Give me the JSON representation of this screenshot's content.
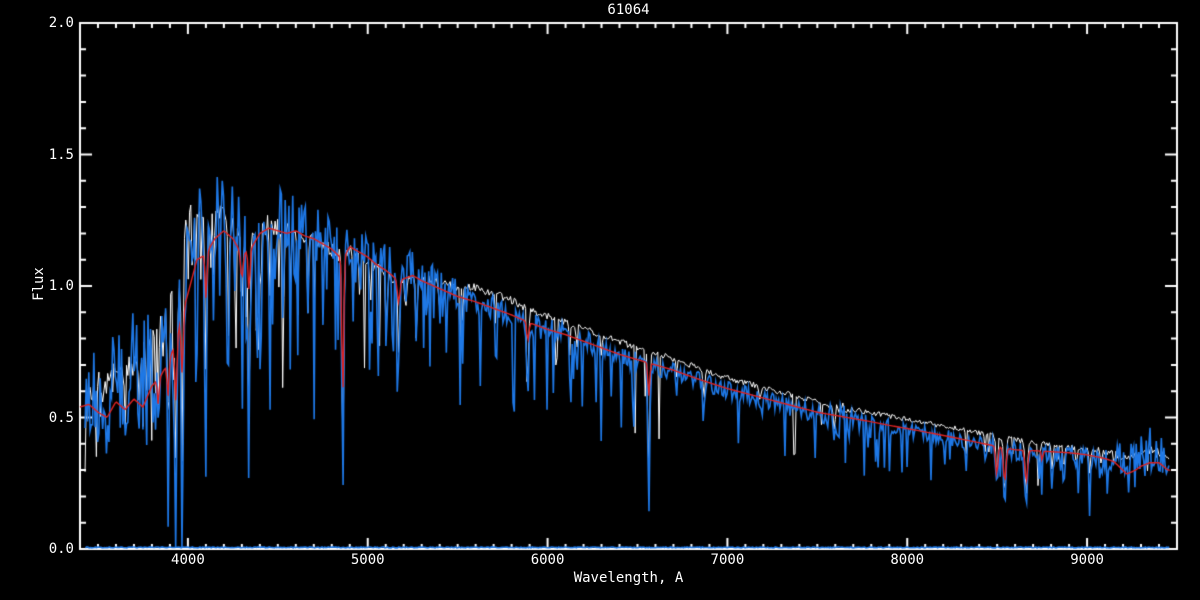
{
  "title": "61064",
  "axes": {
    "x_label": "Wavelength, A",
    "y_label": "Flux",
    "x_range": [
      3400,
      9500
    ],
    "y_range": [
      0.0,
      2.0
    ],
    "x_major_ticks": [
      {
        "value": 4000,
        "label": "4000"
      },
      {
        "value": 5000,
        "label": "5000"
      },
      {
        "value": 6000,
        "label": "6000"
      },
      {
        "value": 7000,
        "label": "7000"
      },
      {
        "value": 8000,
        "label": "8000"
      },
      {
        "value": 9000,
        "label": "9000"
      }
    ],
    "x_minor_step": 100,
    "y_major_ticks": [
      {
        "value": 0.0,
        "label": "0.0"
      },
      {
        "value": 0.5,
        "label": "0.5"
      },
      {
        "value": 1.0,
        "label": "1.0"
      },
      {
        "value": 1.5,
        "label": "1.5"
      },
      {
        "value": 2.0,
        "label": "2.0"
      }
    ],
    "y_minor_step": 0.1
  },
  "colors": {
    "background": "#000000",
    "axis": "#ffffff",
    "observed_white": "#ffffff",
    "observed_blue": "#1e78e6",
    "model_red": "#dd2222"
  },
  "chart_data": {
    "type": "line",
    "title": "61064",
    "xlabel": "Wavelength, A",
    "ylabel": "Flux",
    "xlim": [
      3400,
      9500
    ],
    "ylim": [
      0.0,
      2.0
    ],
    "grid": false,
    "legend": null,
    "continuum_anchors": [
      [
        3400,
        0.5
      ],
      [
        3450,
        0.62
      ],
      [
        3500,
        0.66
      ],
      [
        3550,
        0.66
      ],
      [
        3600,
        0.72
      ],
      [
        3650,
        0.74
      ],
      [
        3700,
        0.76
      ],
      [
        3750,
        0.8
      ],
      [
        3800,
        0.88
      ],
      [
        3850,
        0.95
      ],
      [
        3900,
        0.98
      ],
      [
        3950,
        1.05
      ],
      [
        3990,
        1.3
      ],
      [
        4030,
        1.38
      ],
      [
        4080,
        1.32
      ],
      [
        4120,
        1.3
      ],
      [
        4160,
        1.35
      ],
      [
        4200,
        1.36
      ],
      [
        4250,
        1.32
      ],
      [
        4300,
        1.28
      ],
      [
        4350,
        1.25
      ],
      [
        4400,
        1.3
      ],
      [
        4450,
        1.31
      ],
      [
        4500,
        1.3
      ],
      [
        4550,
        1.28
      ],
      [
        4600,
        1.27
      ],
      [
        4650,
        1.25
      ],
      [
        4700,
        1.24
      ],
      [
        4750,
        1.22
      ],
      [
        4800,
        1.21
      ],
      [
        4860,
        1.18
      ],
      [
        4900,
        1.21
      ],
      [
        4950,
        1.19
      ],
      [
        5000,
        1.17
      ],
      [
        5050,
        1.14
      ],
      [
        5100,
        1.12
      ],
      [
        5170,
        1.08
      ],
      [
        5250,
        1.09
      ],
      [
        5300,
        1.07
      ],
      [
        5400,
        1.03
      ],
      [
        5500,
        0.985
      ],
      [
        5600,
        0.96
      ],
      [
        5700,
        0.935
      ],
      [
        5800,
        0.91
      ],
      [
        5900,
        0.875
      ],
      [
        6000,
        0.85
      ],
      [
        6100,
        0.83
      ],
      [
        6200,
        0.805
      ],
      [
        6300,
        0.78
      ],
      [
        6400,
        0.755
      ],
      [
        6500,
        0.73
      ],
      [
        6600,
        0.71
      ],
      [
        6700,
        0.69
      ],
      [
        6800,
        0.665
      ],
      [
        6900,
        0.64
      ],
      [
        7000,
        0.617
      ],
      [
        7100,
        0.6
      ],
      [
        7200,
        0.582
      ],
      [
        7300,
        0.563
      ],
      [
        7400,
        0.545
      ],
      [
        7500,
        0.528
      ],
      [
        7600,
        0.513
      ],
      [
        7700,
        0.5
      ],
      [
        7800,
        0.487
      ],
      [
        7900,
        0.474
      ],
      [
        8000,
        0.462
      ],
      [
        8100,
        0.449
      ],
      [
        8200,
        0.437
      ],
      [
        8300,
        0.424
      ],
      [
        8400,
        0.412
      ],
      [
        8500,
        0.398
      ],
      [
        8600,
        0.385
      ],
      [
        8700,
        0.378
      ],
      [
        8800,
        0.372
      ],
      [
        8900,
        0.368
      ],
      [
        9000,
        0.364
      ],
      [
        9100,
        0.362
      ],
      [
        9200,
        0.365
      ],
      [
        9300,
        0.39
      ],
      [
        9350,
        0.41
      ],
      [
        9400,
        0.39
      ],
      [
        9450,
        0.36
      ]
    ],
    "model_anchors": [
      [
        3400,
        0.54
      ],
      [
        3450,
        0.55
      ],
      [
        3500,
        0.52
      ],
      [
        3550,
        0.5
      ],
      [
        3600,
        0.56
      ],
      [
        3650,
        0.53
      ],
      [
        3700,
        0.57
      ],
      [
        3750,
        0.54
      ],
      [
        3800,
        0.62
      ],
      [
        3850,
        0.66
      ],
      [
        3900,
        0.72
      ],
      [
        3950,
        0.85
      ],
      [
        4000,
        0.97
      ],
      [
        4050,
        1.1
      ],
      [
        4100,
        1.12
      ],
      [
        4150,
        1.18
      ],
      [
        4200,
        1.21
      ],
      [
        4250,
        1.18
      ],
      [
        4300,
        1.12
      ],
      [
        4350,
        1.14
      ],
      [
        4400,
        1.2
      ],
      [
        4450,
        1.22
      ],
      [
        4500,
        1.21
      ],
      [
        4550,
        1.2
      ],
      [
        4600,
        1.21
      ],
      [
        4650,
        1.19
      ],
      [
        4700,
        1.18
      ],
      [
        4750,
        1.16
      ],
      [
        4800,
        1.14
      ],
      [
        4860,
        1.1
      ],
      [
        4900,
        1.15
      ],
      [
        4950,
        1.13
      ],
      [
        5000,
        1.11
      ],
      [
        5050,
        1.08
      ],
      [
        5100,
        1.06
      ],
      [
        5170,
        1.02
      ],
      [
        5250,
        1.04
      ],
      [
        5300,
        1.02
      ],
      [
        5400,
        0.99
      ],
      [
        5500,
        0.96
      ],
      [
        5600,
        0.94
      ],
      [
        5700,
        0.915
      ],
      [
        5800,
        0.89
      ],
      [
        5900,
        0.86
      ],
      [
        6000,
        0.835
      ],
      [
        6100,
        0.815
      ],
      [
        6200,
        0.79
      ],
      [
        6300,
        0.765
      ],
      [
        6400,
        0.74
      ],
      [
        6500,
        0.72
      ],
      [
        6600,
        0.7
      ],
      [
        6700,
        0.68
      ],
      [
        6800,
        0.655
      ],
      [
        6900,
        0.632
      ],
      [
        7000,
        0.61
      ],
      [
        7100,
        0.592
      ],
      [
        7200,
        0.574
      ],
      [
        7300,
        0.556
      ],
      [
        7400,
        0.538
      ],
      [
        7500,
        0.52
      ],
      [
        7600,
        0.508
      ],
      [
        7700,
        0.496
      ],
      [
        7800,
        0.484
      ],
      [
        7900,
        0.47
      ],
      [
        8000,
        0.458
      ],
      [
        8100,
        0.445
      ],
      [
        8200,
        0.432
      ],
      [
        8300,
        0.418
      ],
      [
        8400,
        0.404
      ],
      [
        8500,
        0.39
      ],
      [
        8600,
        0.377
      ],
      [
        8700,
        0.374
      ],
      [
        8800,
        0.37
      ],
      [
        8900,
        0.366
      ],
      [
        9000,
        0.358
      ],
      [
        9100,
        0.344
      ],
      [
        9150,
        0.332
      ],
      [
        9220,
        0.285
      ],
      [
        9270,
        0.3
      ],
      [
        9300,
        0.315
      ],
      [
        9350,
        0.328
      ],
      [
        9400,
        0.328
      ],
      [
        9450,
        0.3
      ]
    ],
    "absorption_lines_observed": [
      [
        3727,
        4,
        0.3
      ],
      [
        3750,
        3,
        0.25
      ],
      [
        3771,
        3,
        0.3
      ],
      [
        3798,
        4,
        0.35
      ],
      [
        3820,
        3,
        0.3
      ],
      [
        3835,
        4,
        0.45
      ],
      [
        3860,
        3,
        0.35
      ],
      [
        3889,
        4,
        0.5
      ],
      [
        3920,
        3,
        0.4
      ],
      [
        3933,
        5,
        0.8
      ],
      [
        3968,
        5,
        0.8
      ],
      [
        4026,
        3,
        0.28
      ],
      [
        4045,
        2,
        0.22
      ],
      [
        4101,
        5,
        0.55
      ],
      [
        4144,
        3,
        0.25
      ],
      [
        4226,
        4,
        0.4
      ],
      [
        4260,
        3,
        0.25
      ],
      [
        4300,
        5,
        0.3
      ],
      [
        4325,
        3,
        0.3
      ],
      [
        4340,
        5,
        0.7
      ],
      [
        4383,
        4,
        0.5
      ],
      [
        4404,
        3,
        0.35
      ],
      [
        4455,
        3,
        0.3
      ],
      [
        4531,
        4,
        0.32
      ],
      [
        4571,
        3,
        0.25
      ],
      [
        4668,
        3,
        0.28
      ],
      [
        4703,
        3,
        0.22
      ],
      [
        4861,
        5,
        0.85
      ],
      [
        4920,
        3,
        0.25
      ],
      [
        4957,
        3,
        0.22
      ],
      [
        5015,
        3,
        0.22
      ],
      [
        5110,
        3,
        0.2
      ],
      [
        5172,
        5,
        0.32
      ],
      [
        5210,
        3,
        0.2
      ],
      [
        5270,
        4,
        0.28
      ],
      [
        5328,
        3,
        0.22
      ],
      [
        5400,
        3,
        0.18
      ],
      [
        5528,
        3,
        0.15
      ],
      [
        5710,
        3,
        0.15
      ],
      [
        5890,
        5,
        0.3
      ],
      [
        6122,
        3,
        0.18
      ],
      [
        6162,
        3,
        0.16
      ],
      [
        6300,
        3,
        0.12
      ],
      [
        6563,
        5,
        0.8
      ],
      [
        6717,
        3,
        0.12
      ],
      [
        6870,
        5,
        0.18
      ],
      [
        7180,
        5,
        0.1
      ],
      [
        7594,
        6,
        0.15
      ],
      [
        8327,
        3,
        0.22
      ],
      [
        8434,
        3,
        0.2
      ],
      [
        8498,
        5,
        0.4
      ],
      [
        8542,
        6,
        0.62
      ],
      [
        8662,
        6,
        0.6
      ],
      [
        8736,
        3,
        0.25
      ],
      [
        8806,
        4,
        0.3
      ],
      [
        8870,
        4,
        0.28
      ],
      [
        8940,
        3,
        0.25
      ],
      [
        9015,
        4,
        0.3
      ],
      [
        9080,
        3,
        0.25
      ],
      [
        9150,
        3,
        0.22
      ]
    ],
    "absorption_lines_model": [
      [
        3835,
        5,
        0.15
      ],
      [
        3889,
        5,
        0.18
      ],
      [
        3933,
        6,
        0.3
      ],
      [
        3968,
        6,
        0.25
      ],
      [
        4101,
        5,
        0.15
      ],
      [
        4300,
        7,
        0.08
      ],
      [
        4340,
        5,
        0.14
      ],
      [
        4861,
        5,
        0.48
      ],
      [
        5172,
        7,
        0.08
      ],
      [
        5890,
        6,
        0.08
      ],
      [
        6563,
        5,
        0.18
      ],
      [
        8498,
        6,
        0.28
      ],
      [
        8542,
        7,
        0.33
      ],
      [
        8662,
        7,
        0.32
      ],
      [
        8750,
        4,
        0.1
      ]
    ],
    "series": [
      {
        "name": "observed-spectrum-white",
        "color": "#ffffff",
        "source": "continuum",
        "width": 1,
        "depth_scale": 0.85,
        "noise_scale": 0.3,
        "noise_bias": 0.5,
        "offset_anchors": [
          [
            3400,
            -0.04
          ],
          [
            4000,
            -0.08
          ],
          [
            5200,
            -0.07
          ],
          [
            5600,
            0.035
          ],
          [
            8600,
            0.03
          ],
          [
            9100,
            0.01
          ],
          [
            9250,
            -0.02
          ],
          [
            9450,
            -0.03
          ]
        ],
        "x_data_range": [
          3428,
          9460
        ]
      },
      {
        "name": "observed-spectrum-blue",
        "color": "#1e78e6",
        "source": "continuum",
        "width": 1.6,
        "depth_scale": 1.0,
        "noise_scale": 1.0,
        "noise_bias": 0.68,
        "offset_anchors": [
          [
            3400,
            0
          ],
          [
            9500,
            0
          ]
        ],
        "x_data_range": [
          3428,
          9460
        ]
      },
      {
        "name": "zero-baseline-blue",
        "color": "#1e78e6",
        "source": "flat",
        "flat_value": 0.006,
        "width": 1.6,
        "x_data_range": [
          3430,
          9460
        ]
      },
      {
        "name": "model-fit-red",
        "color": "#dd2222",
        "source": "model",
        "width": 1.4,
        "x_data_range": [
          3400,
          9465
        ]
      }
    ],
    "noise": {
      "seed": 7,
      "sample_step": 7,
      "amp_anchors": [
        [
          3400,
          0.42
        ],
        [
          3950,
          0.45
        ],
        [
          4000,
          0.3
        ],
        [
          4600,
          0.24
        ],
        [
          5000,
          0.16
        ],
        [
          5400,
          0.12
        ],
        [
          6000,
          0.09
        ],
        [
          6500,
          0.08
        ],
        [
          7000,
          0.07
        ],
        [
          7550,
          0.07
        ],
        [
          7600,
          0.16
        ],
        [
          7660,
          0.16
        ],
        [
          7700,
          0.07
        ],
        [
          8000,
          0.06
        ],
        [
          8500,
          0.07
        ],
        [
          9000,
          0.07
        ],
        [
          9150,
          0.1
        ],
        [
          9250,
          0.15
        ],
        [
          9350,
          0.16
        ],
        [
          9450,
          0.14
        ]
      ],
      "spike_prob_anchors": [
        [
          3400,
          0.3
        ],
        [
          4000,
          0.25
        ],
        [
          4700,
          0.18
        ],
        [
          5300,
          0.14
        ],
        [
          6000,
          0.1
        ],
        [
          7000,
          0.08
        ],
        [
          8000,
          0.08
        ],
        [
          8700,
          0.1
        ],
        [
          9450,
          0.12
        ]
      ],
      "spike_depth_range": [
        0.12,
        0.45
      ]
    }
  }
}
